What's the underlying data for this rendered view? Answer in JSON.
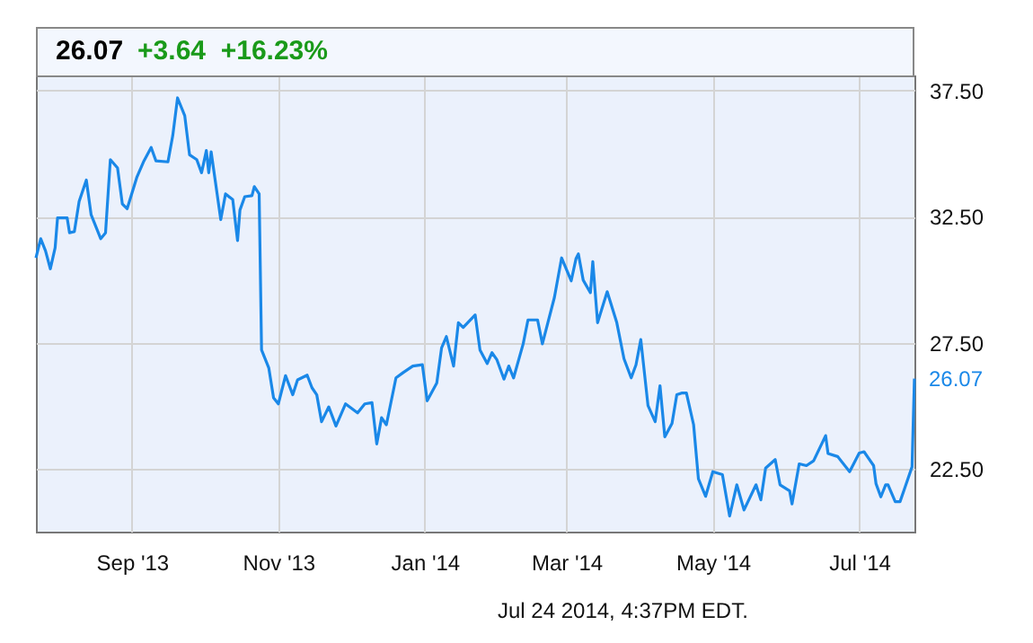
{
  "chart_data": {
    "type": "line",
    "title": "26.07",
    "subtitle": "+3.64  +16.23%",
    "x": [
      "2013-07-23",
      "2013-07-25",
      "2013-07-27",
      "2013-07-29",
      "2013-07-31",
      "2013-08-01",
      "2013-08-05",
      "2013-08-06",
      "2013-08-08",
      "2013-08-10",
      "2013-08-13",
      "2013-08-15",
      "2013-08-19",
      "2013-08-21",
      "2013-08-23",
      "2013-08-26",
      "2013-08-28",
      "2013-08-30",
      "2013-09-03",
      "2013-09-06",
      "2013-09-09",
      "2013-09-11",
      "2013-09-16",
      "2013-09-18",
      "2013-09-20",
      "2013-09-23",
      "2013-09-25",
      "2013-09-28",
      "2013-09-30",
      "2013-10-02",
      "2013-10-03",
      "2013-10-04",
      "2013-10-08",
      "2013-10-10",
      "2013-10-13",
      "2013-10-15",
      "2013-10-16",
      "2013-10-18",
      "2013-10-21",
      "2013-10-22",
      "2013-10-24",
      "2013-10-25",
      "2013-10-28",
      "2013-10-30",
      "2013-11-01",
      "2013-11-04",
      "2013-11-07",
      "2013-11-09",
      "2013-11-13",
      "2013-11-15",
      "2013-11-17",
      "2013-11-19",
      "2013-11-22",
      "2013-11-25",
      "2013-11-29",
      "2013-12-04",
      "2013-12-07",
      "2013-12-10",
      "2013-12-12",
      "2013-12-14",
      "2013-12-16",
      "2013-12-20",
      "2013-12-23",
      "2013-12-27",
      "2013-12-31",
      "2014-01-02",
      "2014-01-06",
      "2014-01-08",
      "2014-01-10",
      "2014-01-13",
      "2014-01-15",
      "2014-01-17",
      "2014-01-22",
      "2014-01-24",
      "2014-01-27",
      "2014-01-29",
      "2014-01-31",
      "2014-02-03",
      "2014-02-05",
      "2014-02-07",
      "2014-02-11",
      "2014-02-13",
      "2014-02-17",
      "2014-02-19",
      "2014-02-24",
      "2014-02-27",
      "2014-03-03",
      "2014-03-05",
      "2014-03-06",
      "2014-03-08",
      "2014-03-11",
      "2014-03-12",
      "2014-03-14",
      "2014-03-18",
      "2014-03-22",
      "2014-03-25",
      "2014-03-28",
      "2014-03-30",
      "2014-04-01",
      "2014-04-04",
      "2014-04-07",
      "2014-04-09",
      "2014-04-11",
      "2014-04-14",
      "2014-04-16",
      "2014-04-18",
      "2014-04-20",
      "2014-04-23",
      "2014-04-25",
      "2014-04-28",
      "2014-05-01",
      "2014-05-05",
      "2014-05-08",
      "2014-05-11",
      "2014-05-14",
      "2014-05-19",
      "2014-05-21",
      "2014-05-23",
      "2014-05-27",
      "2014-05-29",
      "2014-06-02",
      "2014-06-03",
      "2014-06-06",
      "2014-06-09",
      "2014-06-12",
      "2014-06-17",
      "2014-06-18",
      "2014-06-22",
      "2014-06-27",
      "2014-07-01",
      "2014-07-03",
      "2014-07-07",
      "2014-07-08",
      "2014-07-10",
      "2014-07-12",
      "2014-07-13",
      "2014-07-16",
      "2014-07-18",
      "2014-07-20",
      "2014-07-23",
      "2014-07-24"
    ],
    "series": [
      {
        "color": "#1a88e8",
        "values": [
          30.86,
          31.62,
          31.14,
          30.43,
          31.26,
          32.45,
          32.45,
          31.86,
          31.9,
          33.1,
          33.95,
          32.57,
          31.62,
          31.86,
          34.76,
          34.43,
          33.0,
          32.81,
          34.05,
          34.71,
          35.24,
          34.71,
          34.67,
          35.71,
          37.21,
          36.5,
          34.95,
          34.76,
          34.24,
          35.12,
          34.24,
          35.07,
          32.38,
          33.4,
          33.17,
          31.55,
          32.76,
          33.29,
          33.33,
          33.69,
          33.4,
          27.21,
          26.5,
          25.31,
          25.07,
          26.19,
          25.43,
          26.02,
          26.21,
          25.71,
          25.43,
          24.36,
          24.95,
          24.19,
          25.07,
          24.71,
          25.07,
          25.12,
          23.48,
          24.52,
          24.24,
          26.1,
          26.31,
          26.57,
          26.62,
          25.19,
          25.9,
          27.29,
          27.74,
          26.57,
          28.29,
          28.1,
          28.6,
          27.21,
          26.67,
          27.1,
          26.83,
          26.05,
          26.57,
          26.1,
          27.45,
          28.4,
          28.4,
          27.45,
          29.29,
          30.86,
          29.95,
          30.83,
          31.02,
          29.98,
          29.48,
          30.71,
          28.29,
          29.52,
          28.29,
          26.86,
          26.1,
          26.62,
          27.62,
          25.0,
          24.36,
          25.79,
          23.76,
          24.29,
          25.43,
          25.5,
          25.5,
          24.24,
          22.1,
          21.4,
          22.38,
          22.26,
          20.62,
          21.86,
          20.86,
          21.86,
          21.26,
          22.52,
          22.86,
          21.86,
          21.62,
          21.1,
          22.69,
          22.62,
          22.81,
          23.81,
          23.1,
          22.98,
          22.38,
          23.12,
          23.17,
          22.62,
          21.9,
          21.38,
          21.86,
          21.86,
          21.19,
          21.19,
          21.74,
          22.57,
          26.07
        ]
      }
    ],
    "xlim": [
      "2013-07-23",
      "2014-07-24"
    ],
    "xticks": [
      {
        "value": "2013-09-01",
        "label": "Sep '13"
      },
      {
        "value": "2013-11-01",
        "label": "Nov '13"
      },
      {
        "value": "2014-01-01",
        "label": "Jan '14"
      },
      {
        "value": "2014-03-01",
        "label": "Mar '14"
      },
      {
        "value": "2014-05-01",
        "label": "May '14"
      },
      {
        "value": "2014-07-01",
        "label": "Jul '14"
      }
    ],
    "ylim": [
      20,
      38.1
    ],
    "yticks": [
      {
        "value": 22.5,
        "label": "22.50"
      },
      {
        "value": 27.5,
        "label": "27.50"
      },
      {
        "value": 32.5,
        "label": "32.50"
      },
      {
        "value": 37.5,
        "label": "37.50"
      }
    ],
    "grid": true,
    "annotations": [
      "Jul 24 2014, 4:37PM EDT.",
      {
        "text": "26.07",
        "x": "2014-07-24",
        "y": 26.07
      }
    ]
  }
}
